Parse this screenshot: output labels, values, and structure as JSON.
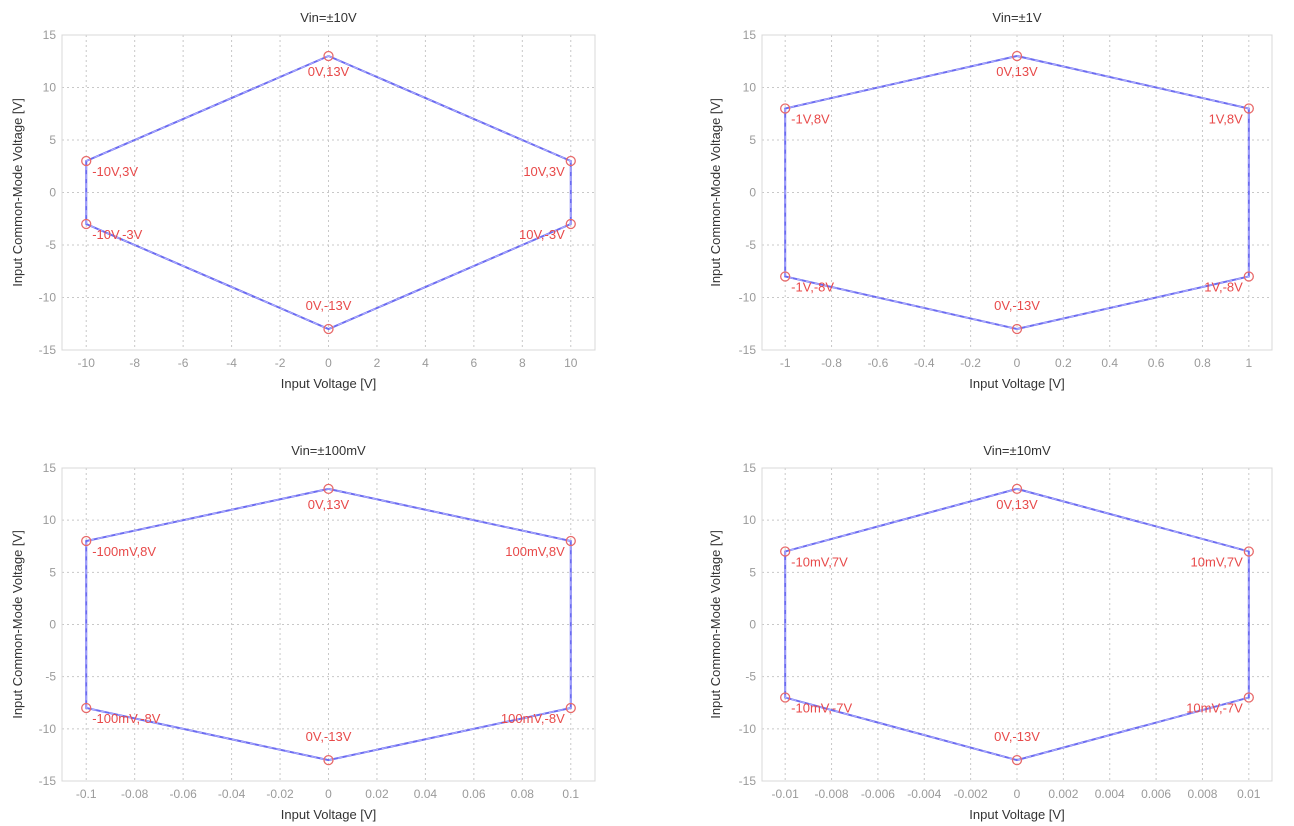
{
  "chart_data": [
    {
      "type": "line",
      "title": "Vin=±10V",
      "xlabel": "Input Voltage [V]",
      "ylabel": "Input Common-Mode Voltage [V]",
      "xlim": [
        -11,
        11
      ],
      "ylim": [
        -15,
        15
      ],
      "xticks": [
        -10,
        -8,
        -6,
        -4,
        -2,
        0,
        2,
        4,
        6,
        8,
        10
      ],
      "xtick_labels": [
        "-10",
        "-8",
        "-6",
        "-4",
        "-2",
        "0",
        "2",
        "4",
        "6",
        "8",
        "10"
      ],
      "yticks": [
        15,
        10,
        5,
        0,
        -5,
        -10,
        -15
      ],
      "ytick_labels": [
        "15",
        "10",
        "5",
        "0",
        "-5",
        "-10",
        "-15"
      ],
      "grid": true,
      "series": [
        {
          "x": [
            0,
            10,
            10,
            0,
            -10,
            -10,
            0
          ],
          "y": [
            13,
            3,
            -3,
            -13,
            -3,
            3,
            13
          ]
        }
      ],
      "points": [
        {
          "x": 0,
          "y": 13,
          "label": "0V,13V",
          "align": "center-below"
        },
        {
          "x": 10,
          "y": 3,
          "label": "10V,3V",
          "align": "left-of"
        },
        {
          "x": 10,
          "y": -3,
          "label": "10V,-3V",
          "align": "left-of"
        },
        {
          "x": 0,
          "y": -13,
          "label": "0V,-13V",
          "align": "center-above"
        },
        {
          "x": -10,
          "y": -3,
          "label": "-10V,-3V",
          "align": "right-of"
        },
        {
          "x": -10,
          "y": 3,
          "label": "-10V,3V",
          "align": "right-of"
        }
      ]
    },
    {
      "type": "line",
      "title": "Vin=±1V",
      "xlabel": "Input Voltage [V]",
      "ylabel": "Input Common-Mode Voltage [V]",
      "xlim": [
        -1.1,
        1.1
      ],
      "ylim": [
        -15,
        15
      ],
      "xticks": [
        -1,
        -0.8,
        -0.6,
        -0.4,
        -0.2,
        0,
        0.2,
        0.4,
        0.6,
        0.8,
        1
      ],
      "xtick_labels": [
        "-1",
        "-0.8",
        "-0.6",
        "-0.4",
        "-0.2",
        "0",
        "0.2",
        "0.4",
        "0.6",
        "0.8",
        "1"
      ],
      "yticks": [
        15,
        10,
        5,
        0,
        -5,
        -10,
        -15
      ],
      "ytick_labels": [
        "15",
        "10",
        "5",
        "0",
        "-5",
        "-10",
        "-15"
      ],
      "grid": true,
      "series": [
        {
          "x": [
            0,
            1,
            1,
            0,
            -1,
            -1,
            0
          ],
          "y": [
            13,
            8,
            -8,
            -13,
            -8,
            8,
            13
          ]
        }
      ],
      "points": [
        {
          "x": 0,
          "y": 13,
          "label": "0V,13V",
          "align": "center-below"
        },
        {
          "x": 1,
          "y": 8,
          "label": "1V,8V",
          "align": "left-of"
        },
        {
          "x": 1,
          "y": -8,
          "label": "1V,-8V",
          "align": "left-of"
        },
        {
          "x": 0,
          "y": -13,
          "label": "0V,-13V",
          "align": "center-above"
        },
        {
          "x": -1,
          "y": -8,
          "label": "-1V,-8V",
          "align": "right-of"
        },
        {
          "x": -1,
          "y": 8,
          "label": "-1V,8V",
          "align": "right-of"
        }
      ]
    },
    {
      "type": "line",
      "title": "Vin=±100mV",
      "xlabel": "Input Voltage [V]",
      "ylabel": "Input Common-Mode Voltage [V]",
      "xlim": [
        -0.11,
        0.11
      ],
      "ylim": [
        -15,
        15
      ],
      "xticks": [
        -0.1,
        -0.08,
        -0.06,
        -0.04,
        -0.02,
        0,
        0.02,
        0.04,
        0.06,
        0.08,
        0.1
      ],
      "xtick_labels": [
        "-0.1",
        "-0.08",
        "-0.06",
        "-0.04",
        "-0.02",
        "0",
        "0.02",
        "0.04",
        "0.06",
        "0.08",
        "0.1"
      ],
      "yticks": [
        15,
        10,
        5,
        0,
        -5,
        -10,
        -15
      ],
      "ytick_labels": [
        "15",
        "10",
        "5",
        "0",
        "-5",
        "-10",
        "-15"
      ],
      "grid": true,
      "series": [
        {
          "x": [
            0,
            0.1,
            0.1,
            0,
            -0.1,
            -0.1,
            0
          ],
          "y": [
            13,
            8,
            -8,
            -13,
            -8,
            8,
            13
          ]
        }
      ],
      "points": [
        {
          "x": 0,
          "y": 13,
          "label": "0V,13V",
          "align": "center-below"
        },
        {
          "x": 0.1,
          "y": 8,
          "label": "100mV,8V",
          "align": "left-of"
        },
        {
          "x": 0.1,
          "y": -8,
          "label": "100mV,-8V",
          "align": "left-of"
        },
        {
          "x": 0,
          "y": -13,
          "label": "0V,-13V",
          "align": "center-above"
        },
        {
          "x": -0.1,
          "y": -8,
          "label": "-100mV,-8V",
          "align": "right-of"
        },
        {
          "x": -0.1,
          "y": 8,
          "label": "-100mV,8V",
          "align": "right-of"
        }
      ]
    },
    {
      "type": "line",
      "title": "Vin=±10mV",
      "xlabel": "Input Voltage [V]",
      "ylabel": "Input Common-Mode Voltage [V]",
      "xlim": [
        -0.011,
        0.011
      ],
      "ylim": [
        -15,
        15
      ],
      "xticks": [
        -0.01,
        -0.008,
        -0.006,
        -0.004,
        -0.002,
        0,
        0.002,
        0.004,
        0.006,
        0.008,
        0.01
      ],
      "xtick_labels": [
        "-0.01",
        "-0.008",
        "-0.006",
        "-0.004",
        "-0.002",
        "0",
        "0.002",
        "0.004",
        "0.006",
        "0.008",
        "0.01"
      ],
      "yticks": [
        15,
        10,
        5,
        0,
        -5,
        -10,
        -15
      ],
      "ytick_labels": [
        "15",
        "10",
        "5",
        "0",
        "-5",
        "-10",
        "-15"
      ],
      "grid": true,
      "series": [
        {
          "x": [
            0,
            0.01,
            0.01,
            0,
            -0.01,
            -0.01,
            0
          ],
          "y": [
            13,
            7,
            -7,
            -13,
            -7,
            7,
            13
          ]
        }
      ],
      "points": [
        {
          "x": 0,
          "y": 13,
          "label": "0V,13V",
          "align": "center-below"
        },
        {
          "x": 0.01,
          "y": 7,
          "label": "10mV,7V",
          "align": "left-of"
        },
        {
          "x": 0.01,
          "y": -7,
          "label": "10mV,-7V",
          "align": "left-of"
        },
        {
          "x": 0,
          "y": -13,
          "label": "0V,-13V",
          "align": "center-above"
        },
        {
          "x": -0.01,
          "y": -7,
          "label": "-10mV,-7V",
          "align": "right-of"
        },
        {
          "x": -0.01,
          "y": 7,
          "label": "-10mV,7V",
          "align": "right-of"
        }
      ]
    }
  ]
}
